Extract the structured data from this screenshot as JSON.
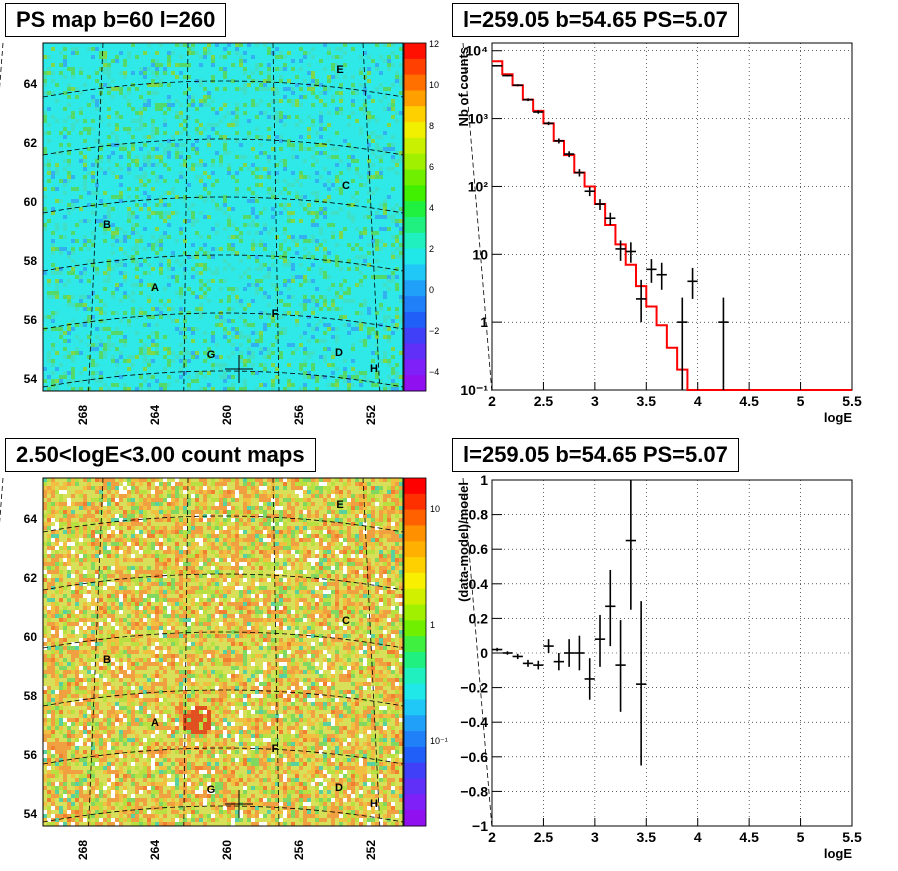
{
  "panels": {
    "top_left_title": "PS map b=60 l=260",
    "top_right_title": "l=259.05 b=54.65 PS=5.07",
    "bottom_left_title": "2.50<logE<3.00 count maps",
    "bottom_right_title": "l=259.05 b=54.65 PS=5.07"
  },
  "colors": {
    "map_top_base": "#2fe8e8",
    "map_top_green": "#52d96a",
    "map_bottom_yellow": "#d8e05a",
    "map_bottom_orange": "#f0a040",
    "model_line": "#ff0000",
    "data_points": "#000000"
  },
  "chart_data": [
    {
      "type": "heatmap",
      "title": "PS map b=60 l=260",
      "x_ticks": [
        "268",
        "264",
        "260",
        "256",
        "252"
      ],
      "y_ticks": [
        "54",
        "56",
        "58",
        "60",
        "62",
        "64"
      ],
      "colorbar_ticks": [
        "12",
        "10",
        "8",
        "6",
        "4",
        "2",
        "0",
        "−2",
        "−4"
      ],
      "colorbar_range": [
        -5,
        12
      ],
      "sources": [
        "A",
        "B",
        "C",
        "D",
        "E",
        "F",
        "G",
        "H"
      ],
      "marker": {
        "l": 259.05,
        "b": 54.65
      }
    },
    {
      "type": "line",
      "title": "l=259.05 b=54.65 PS=5.07",
      "xlabel": "logE",
      "ylabel": "Nb of counts",
      "ylog": true,
      "xlim": [
        2,
        5.5
      ],
      "ylim": [
        0.1,
        13000
      ],
      "x_ticks": [
        "2",
        "2.5",
        "3",
        "3.5",
        "4",
        "4.5",
        "5",
        "5.5"
      ],
      "y_ticks": [
        "10⁻¹",
        "1",
        "10",
        "10²",
        "10³",
        "10⁴"
      ],
      "model": {
        "edges": [
          2.0,
          2.1,
          2.2,
          2.3,
          2.4,
          2.5,
          2.6,
          2.7,
          2.8,
          2.9,
          3.0,
          3.1,
          3.2,
          3.3,
          3.4,
          3.5,
          3.6,
          3.7,
          3.8,
          3.9,
          4.0,
          4.1,
          4.2,
          4.3,
          4.4,
          4.5,
          4.6,
          4.7,
          4.8,
          4.9,
          5.0,
          5.1,
          5.2,
          5.3,
          5.4,
          5.5
        ],
        "values": [
          7000,
          4500,
          3100,
          1900,
          1300,
          850,
          470,
          290,
          160,
          100,
          55,
          27,
          14,
          7,
          3.4,
          1.7,
          0.9,
          0.42,
          0.2,
          0.1,
          0.1,
          0.1,
          0.1,
          0.1,
          0.1,
          0.1,
          0.1,
          0.1,
          0.1,
          0.1,
          0.1,
          0.1,
          0.1,
          0.1,
          0.1
        ]
      },
      "data": [
        {
          "x": 2.05,
          "y": 6000,
          "lo": 5850,
          "hi": 6150
        },
        {
          "x": 2.15,
          "y": 4300,
          "lo": 4170,
          "hi": 4430
        },
        {
          "x": 2.25,
          "y": 3100,
          "lo": 2990,
          "hi": 3210
        },
        {
          "x": 2.35,
          "y": 1900,
          "lo": 1810,
          "hi": 1990
        },
        {
          "x": 2.45,
          "y": 1250,
          "lo": 1180,
          "hi": 1320
        },
        {
          "x": 2.55,
          "y": 850,
          "lo": 800,
          "hi": 900
        },
        {
          "x": 2.65,
          "y": 470,
          "lo": 430,
          "hi": 510
        },
        {
          "x": 2.75,
          "y": 300,
          "lo": 270,
          "hi": 330
        },
        {
          "x": 2.85,
          "y": 160,
          "lo": 140,
          "hi": 180
        },
        {
          "x": 2.95,
          "y": 85,
          "lo": 72,
          "hi": 98
        },
        {
          "x": 3.05,
          "y": 55,
          "lo": 45,
          "hi": 65
        },
        {
          "x": 3.15,
          "y": 34,
          "lo": 27,
          "hi": 41
        },
        {
          "x": 3.25,
          "y": 12,
          "lo": 8,
          "hi": 16
        },
        {
          "x": 3.35,
          "y": 11,
          "lo": 7.5,
          "hi": 15
        },
        {
          "x": 3.45,
          "y": 2.2,
          "lo": 1.0,
          "hi": 4.2
        },
        {
          "x": 3.55,
          "y": 6,
          "lo": 3.8,
          "hi": 8.5
        },
        {
          "x": 3.65,
          "y": 5,
          "lo": 3.0,
          "hi": 7.5
        },
        {
          "x": 3.85,
          "y": 1,
          "lo": 0.1,
          "hi": 2.3
        },
        {
          "x": 3.95,
          "y": 4,
          "lo": 2.2,
          "hi": 6.3
        },
        {
          "x": 4.25,
          "y": 1,
          "lo": 0.1,
          "hi": 2.3
        }
      ]
    },
    {
      "type": "heatmap",
      "title": "2.50<logE<3.00 count maps",
      "x_ticks": [
        "268",
        "264",
        "260",
        "256",
        "252"
      ],
      "y_ticks": [
        "54",
        "56",
        "58",
        "60",
        "62",
        "64"
      ],
      "colorbar_ticks": [
        "10",
        "1",
        "10⁻¹"
      ],
      "colorbar_log": true,
      "sources": [
        "A",
        "B",
        "C",
        "D",
        "E",
        "F",
        "G",
        "H"
      ],
      "marker": {
        "l": 259.05,
        "b": 54.65
      }
    },
    {
      "type": "scatter",
      "title": "l=259.05 b=54.65 PS=5.07",
      "xlabel": "logE",
      "ylabel": "(data-model)/model",
      "xlim": [
        2,
        5.5
      ],
      "ylim": [
        -1,
        1
      ],
      "x_ticks": [
        "2",
        "2.5",
        "3",
        "3.5",
        "4",
        "4.5",
        "5",
        "5.5"
      ],
      "y_ticks": [
        "−1",
        "−0.8",
        "−0.6",
        "−0.4",
        "−0.2",
        "0",
        "0.2",
        "0.4",
        "0.6",
        "0.8",
        "1"
      ],
      "data": [
        {
          "x": 2.05,
          "y": 0.02,
          "lo": 0.01,
          "hi": 0.03
        },
        {
          "x": 2.15,
          "y": 0.0,
          "lo": -0.01,
          "hi": 0.01
        },
        {
          "x": 2.25,
          "y": -0.02,
          "lo": -0.035,
          "hi": -0.005
        },
        {
          "x": 2.35,
          "y": -0.06,
          "lo": -0.08,
          "hi": -0.04
        },
        {
          "x": 2.45,
          "y": -0.07,
          "lo": -0.095,
          "hi": -0.045
        },
        {
          "x": 2.55,
          "y": 0.04,
          "lo": 0.0,
          "hi": 0.08
        },
        {
          "x": 2.65,
          "y": -0.05,
          "lo": -0.1,
          "hi": 0.0
        },
        {
          "x": 2.75,
          "y": 0.0,
          "lo": -0.08,
          "hi": 0.08
        },
        {
          "x": 2.85,
          "y": 0.0,
          "lo": -0.1,
          "hi": 0.1
        },
        {
          "x": 2.95,
          "y": -0.15,
          "lo": -0.27,
          "hi": -0.03
        },
        {
          "x": 3.05,
          "y": 0.08,
          "lo": -0.08,
          "hi": 0.22
        },
        {
          "x": 3.15,
          "y": 0.27,
          "lo": 0.04,
          "hi": 0.48
        },
        {
          "x": 3.25,
          "y": -0.07,
          "lo": -0.34,
          "hi": 0.19
        },
        {
          "x": 3.35,
          "y": 0.65,
          "lo": 0.25,
          "hi": 1.0
        },
        {
          "x": 3.45,
          "y": -0.18,
          "lo": -0.65,
          "hi": 0.3
        }
      ]
    }
  ]
}
